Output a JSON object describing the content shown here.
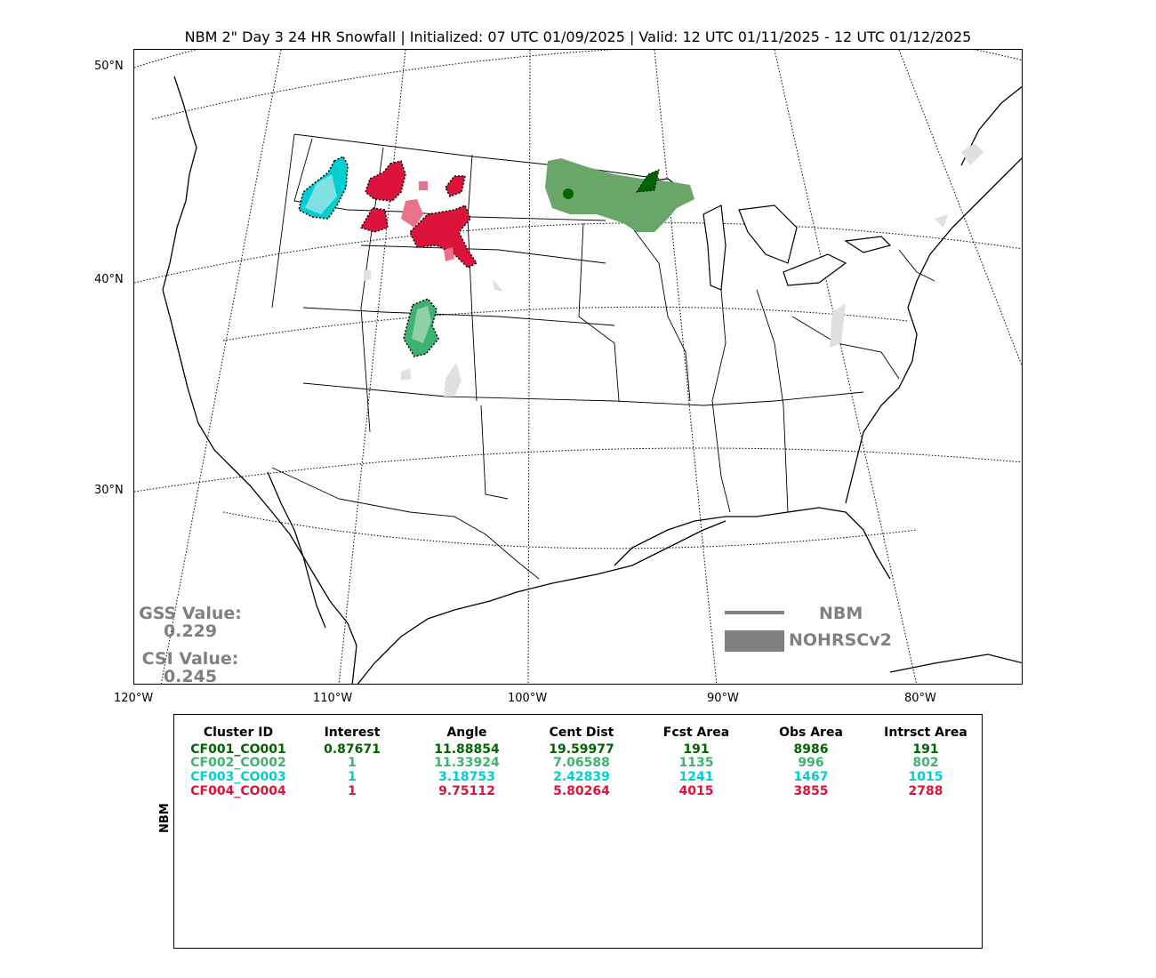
{
  "title": "NBM 2\" Day 3 24 HR Snowfall | Initialized: 07 UTC 01/09/2025 | Valid: 12 UTC 01/11/2025 - 12 UTC 01/12/2025",
  "lat_labels": [
    "50°N",
    "40°N",
    "30°N"
  ],
  "lon_labels": [
    "120°W",
    "110°W",
    "100°W",
    "90°W",
    "80°W"
  ],
  "stats": {
    "gss_label": "GSS Value:",
    "gss_value": "0.229",
    "csi_label": "CSI Value:",
    "csi_value": "0.245"
  },
  "legend": {
    "line_label": "NBM",
    "fill_label": "NOHRSCv2",
    "color": "#808080"
  },
  "table": {
    "side_label": "NBM",
    "headers": [
      "Cluster ID",
      "Interest",
      "Angle",
      "Cent Dist",
      "Fcst Area",
      "Obs Area",
      "Intrsct Area"
    ],
    "rows": [
      {
        "color": "#006400",
        "cells": [
          "CF001_CO001",
          "0.87671",
          "11.88854",
          "19.59977",
          "191",
          "8986",
          "191"
        ]
      },
      {
        "color": "#3cb371",
        "cells": [
          "CF002_CO002",
          "1",
          "11.33924",
          "7.06588",
          "1135",
          "996",
          "802"
        ]
      },
      {
        "color": "#00ced1",
        "cells": [
          "CF003_CO003",
          "1",
          "3.18753",
          "2.42839",
          "1241",
          "1467",
          "1015"
        ]
      },
      {
        "color": "#dc143c",
        "cells": [
          "CF004_CO004",
          "1",
          "9.75112",
          "5.80264",
          "4015",
          "3855",
          "2788"
        ]
      }
    ]
  }
}
